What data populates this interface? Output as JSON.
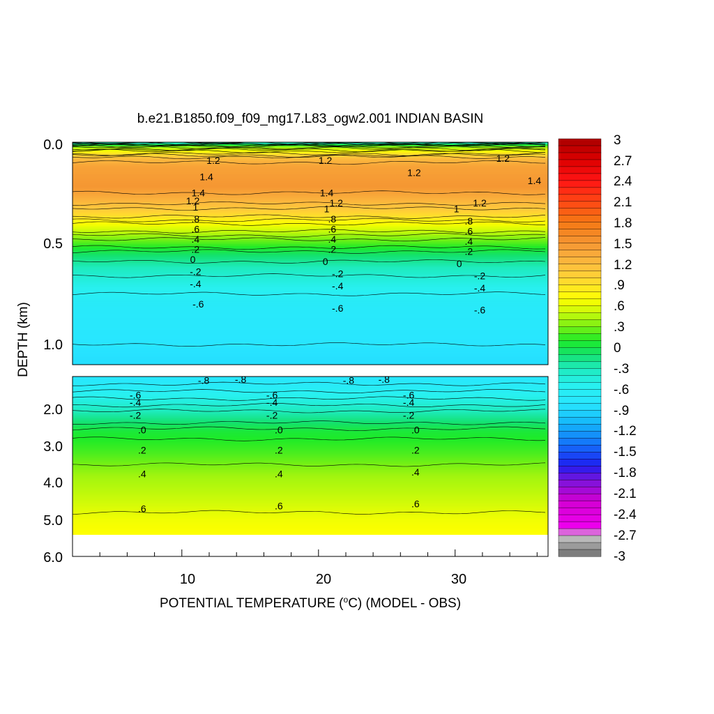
{
  "chart_data": {
    "type": "contour",
    "title": "b.e21.B1850.f09_f09_mg17.L83_ogw2.001 INDIAN BASIN",
    "xlabel_prefix": "POTENTIAL TEMPERATURE (",
    "xlabel_unit_sup": "o",
    "xlabel_suffix": "C) (MODEL - OBS)",
    "ylabel": "DEPTH (km)",
    "x_ticks": [
      "10",
      "20",
      "30"
    ],
    "y_ticks_upper": [
      "0.0",
      "0.5",
      "1.0"
    ],
    "y_ticks_lower": [
      "2.0",
      "3.0",
      "4.0",
      "5.0",
      "6.0"
    ],
    "colorbar_labels": [
      "3",
      "2.7",
      "2.4",
      "2.1",
      "1.8",
      "1.5",
      "1.2",
      ".9",
      ".6",
      ".3",
      "0",
      "-.3",
      "-.6",
      "-.9",
      "-1.2",
      "-1.5",
      "-1.8",
      "-2.1",
      "-2.4",
      "-2.7",
      "-3"
    ],
    "colorbar_range": [
      -3,
      3
    ],
    "upper_panel": {
      "depth_range_km": [
        0,
        1.1
      ],
      "bands": [
        {
          "depth_km": 0.0,
          "value": -0.5
        },
        {
          "depth_km": 0.02,
          "value": 0.3
        },
        {
          "depth_km": 0.05,
          "value": 0.8
        },
        {
          "depth_km": 0.08,
          "value": 1.2
        },
        {
          "depth_km": 0.12,
          "value": 1.4
        },
        {
          "depth_km": 0.22,
          "value": 1.5
        },
        {
          "depth_km": 0.28,
          "value": 1.3
        },
        {
          "depth_km": 0.35,
          "value": 1.0
        },
        {
          "depth_km": 0.42,
          "value": 0.6
        },
        {
          "depth_km": 0.5,
          "value": 0.2
        },
        {
          "depth_km": 0.56,
          "value": -0.1
        },
        {
          "depth_km": 0.62,
          "value": -0.3
        },
        {
          "depth_km": 0.7,
          "value": -0.5
        },
        {
          "depth_km": 0.8,
          "value": -0.7
        },
        {
          "depth_km": 0.9,
          "value": -0.75
        },
        {
          "depth_km": 1.1,
          "value": -0.85
        }
      ],
      "contour_labels": [
        {
          "text": "1.2",
          "x": 12.3,
          "depth_km": 0.09
        },
        {
          "text": "1.2",
          "x": 20.5,
          "depth_km": 0.09
        },
        {
          "text": "1.2",
          "x": 27.0,
          "depth_km": 0.15
        },
        {
          "text": "1.2",
          "x": 33.5,
          "depth_km": 0.08
        },
        {
          "text": "1.4",
          "x": 11.8,
          "depth_km": 0.17
        },
        {
          "text": "1.4",
          "x": 35.8,
          "depth_km": 0.19
        },
        {
          "text": "1.4",
          "x": 11.2,
          "depth_km": 0.25
        },
        {
          "text": "1.4",
          "x": 20.6,
          "depth_km": 0.25
        },
        {
          "text": "1.2",
          "x": 10.8,
          "depth_km": 0.29
        },
        {
          "text": "1.2",
          "x": 21.3,
          "depth_km": 0.3
        },
        {
          "text": "1.2",
          "x": 31.8,
          "depth_km": 0.3
        },
        {
          "text": "1",
          "x": 11.0,
          "depth_km": 0.32
        },
        {
          "text": "1",
          "x": 20.6,
          "depth_km": 0.33
        },
        {
          "text": "1",
          "x": 30.1,
          "depth_km": 0.33
        },
        {
          "text": ".8",
          "x": 11.0,
          "depth_km": 0.38
        },
        {
          "text": ".8",
          "x": 21.0,
          "depth_km": 0.38
        },
        {
          "text": ".8",
          "x": 31.0,
          "depth_km": 0.39
        },
        {
          "text": ".6",
          "x": 11.0,
          "depth_km": 0.43
        },
        {
          "text": ".6",
          "x": 21.0,
          "depth_km": 0.43
        },
        {
          "text": ".6",
          "x": 31.0,
          "depth_km": 0.44
        },
        {
          "text": ".4",
          "x": 11.0,
          "depth_km": 0.48
        },
        {
          "text": ".4",
          "x": 21.0,
          "depth_km": 0.48
        },
        {
          "text": ".4",
          "x": 31.0,
          "depth_km": 0.49
        },
        {
          "text": ".2",
          "x": 11.0,
          "depth_km": 0.53
        },
        {
          "text": ".2",
          "x": 21.0,
          "depth_km": 0.53
        },
        {
          "text": ".2",
          "x": 31.0,
          "depth_km": 0.54
        },
        {
          "text": "0",
          "x": 10.8,
          "depth_km": 0.58
        },
        {
          "text": "0",
          "x": 20.5,
          "depth_km": 0.59
        },
        {
          "text": "0",
          "x": 30.3,
          "depth_km": 0.6
        },
        {
          "text": "-.2",
          "x": 11.0,
          "depth_km": 0.64
        },
        {
          "text": "-.2",
          "x": 21.4,
          "depth_km": 0.65
        },
        {
          "text": "-.2",
          "x": 31.8,
          "depth_km": 0.66
        },
        {
          "text": "-.4",
          "x": 11.0,
          "depth_km": 0.7
        },
        {
          "text": "-.4",
          "x": 21.4,
          "depth_km": 0.71
        },
        {
          "text": "-.4",
          "x": 31.8,
          "depth_km": 0.72
        },
        {
          "text": "-.6",
          "x": 11.2,
          "depth_km": 0.8
        },
        {
          "text": "-.6",
          "x": 21.4,
          "depth_km": 0.82
        },
        {
          "text": "-.6",
          "x": 31.8,
          "depth_km": 0.83
        }
      ]
    },
    "lower_panel": {
      "depth_range_km": [
        1.1,
        6.0
      ],
      "data_bottom_km": 5.4,
      "bands": [
        {
          "depth_km": 1.1,
          "value": -0.8
        },
        {
          "depth_km": 1.4,
          "value": -0.65
        },
        {
          "depth_km": 1.8,
          "value": -0.45
        },
        {
          "depth_km": 2.2,
          "value": -0.2
        },
        {
          "depth_km": 2.6,
          "value": 0.05
        },
        {
          "depth_km": 3.2,
          "value": 0.2
        },
        {
          "depth_km": 3.8,
          "value": 0.4
        },
        {
          "depth_km": 4.4,
          "value": 0.5
        },
        {
          "depth_km": 5.0,
          "value": 0.65
        },
        {
          "depth_km": 5.4,
          "value": 0.7
        }
      ],
      "contour_labels": [
        {
          "text": "-.8",
          "x": 11.6,
          "depth_km": 1.2
        },
        {
          "text": "-.8",
          "x": 14.3,
          "depth_km": 1.18
        },
        {
          "text": "-.8",
          "x": 22.2,
          "depth_km": 1.2
        },
        {
          "text": "-.8",
          "x": 24.8,
          "depth_km": 1.18
        },
        {
          "text": "-.6",
          "x": 6.6,
          "depth_km": 1.6
        },
        {
          "text": "-.6",
          "x": 16.6,
          "depth_km": 1.6
        },
        {
          "text": "-.6",
          "x": 26.6,
          "depth_km": 1.6
        },
        {
          "text": "-.4",
          "x": 6.6,
          "depth_km": 1.8
        },
        {
          "text": "-.4",
          "x": 16.6,
          "depth_km": 1.8
        },
        {
          "text": "-.4",
          "x": 26.6,
          "depth_km": 1.8
        },
        {
          "text": "-.2",
          "x": 6.6,
          "depth_km": 2.15
        },
        {
          "text": "-.2",
          "x": 16.6,
          "depth_km": 2.15
        },
        {
          "text": "-.2",
          "x": 26.6,
          "depth_km": 2.15
        },
        {
          "text": ".0",
          "x": 7.1,
          "depth_km": 2.55
        },
        {
          "text": ".0",
          "x": 17.1,
          "depth_km": 2.55
        },
        {
          "text": ".0",
          "x": 27.1,
          "depth_km": 2.55
        },
        {
          "text": ".2",
          "x": 7.1,
          "depth_km": 3.1
        },
        {
          "text": ".2",
          "x": 17.1,
          "depth_km": 3.1
        },
        {
          "text": ".2",
          "x": 27.1,
          "depth_km": 3.1
        },
        {
          "text": ".4",
          "x": 7.1,
          "depth_km": 3.75
        },
        {
          "text": ".4",
          "x": 17.1,
          "depth_km": 3.75
        },
        {
          "text": ".4",
          "x": 27.1,
          "depth_km": 3.7
        },
        {
          "text": ".6",
          "x": 7.1,
          "depth_km": 4.7
        },
        {
          "text": ".6",
          "x": 17.1,
          "depth_km": 4.62
        },
        {
          "text": ".6",
          "x": 27.1,
          "depth_km": 4.57
        }
      ]
    },
    "x_range": [
      2,
      36.8
    ],
    "colors": {
      "background": "#ffffff",
      "frame": "#000000"
    }
  }
}
